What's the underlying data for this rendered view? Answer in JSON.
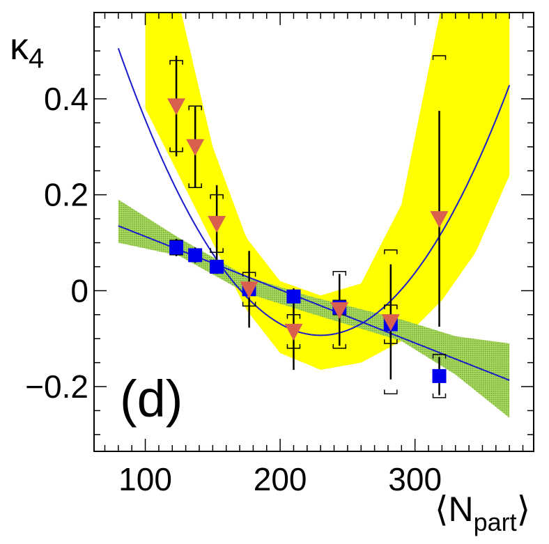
{
  "chart_data": {
    "type": "scatter",
    "panel_label": "(d)",
    "xlabel": {
      "main": "⟨N",
      "sub": "part",
      "close": "⟩"
    },
    "ylabel": {
      "main": "κ",
      "sub": "4"
    },
    "xlim": [
      62,
      388
    ],
    "ylim": [
      -0.335,
      0.58
    ],
    "x_ticks": [
      {
        "value": 100,
        "label": "100"
      },
      {
        "value": 200,
        "label": "200"
      },
      {
        "value": 300,
        "label": "300"
      }
    ],
    "y_ticks": [
      {
        "value": -0.2,
        "label": "−0.2"
      },
      {
        "value": 0,
        "label": "0"
      },
      {
        "value": 0.2,
        "label": "0.2"
      },
      {
        "value": 0.4,
        "label": "0.4"
      }
    ],
    "series": [
      {
        "name": "blue squares",
        "marker": "square",
        "color": "#0000ee",
        "x": [
          123,
          137,
          153,
          177,
          210,
          244,
          282,
          318
        ],
        "y": [
          0.09,
          0.074,
          0.05,
          0.003,
          -0.012,
          -0.035,
          -0.07,
          -0.178
        ],
        "stat_err": [
          0.018,
          0.016,
          0.015,
          0.016,
          0.017,
          0.02,
          0.024,
          0.04
        ],
        "sys_err": [
          0.015,
          0.012,
          0.013,
          0.013,
          0.012,
          0.015,
          0.04,
          0.045
        ]
      },
      {
        "name": "red triangles",
        "marker": "triangle-down",
        "color": "#d9604f",
        "x": [
          123,
          137,
          153,
          177,
          210,
          244,
          282,
          318
        ],
        "y": [
          0.385,
          0.3,
          0.14,
          0.003,
          -0.085,
          -0.04,
          -0.065,
          0.15
        ],
        "stat_err": [
          0.105,
          0.085,
          0.08,
          0.08,
          0.08,
          0.075,
          0.12,
          0.225
        ],
        "sys_err": [
          0.095,
          0.085,
          0.06,
          0.035,
          0.035,
          0.08,
          0.15,
          0.34
        ]
      }
    ],
    "fits": [
      {
        "name": "linear fit",
        "color": "#1a1acc",
        "band_color": "#8fcc3c",
        "form": "a + b*x",
        "a": 0.224,
        "b": -0.00111,
        "x_range": [
          80,
          370
        ],
        "band": [
          {
            "x": 80,
            "lo": 0.1,
            "hi": 0.19
          },
          {
            "x": 125,
            "lo": 0.073,
            "hi": 0.11
          },
          {
            "x": 175,
            "lo": -0.005,
            "hi": 0.03
          },
          {
            "x": 220,
            "lo": -0.045,
            "hi": -0.01
          },
          {
            "x": 290,
            "lo": -0.105,
            "hi": -0.06
          },
          {
            "x": 330,
            "lo": -0.175,
            "hi": -0.095
          },
          {
            "x": 370,
            "lo": -0.265,
            "hi": -0.11
          }
        ]
      },
      {
        "name": "parabolic fit",
        "color": "#1a1acc",
        "band_color": "#ffff00",
        "form": "c + d*(x - x0)^2",
        "c": -0.093,
        "d": 2.66e-05,
        "x0": 230,
        "x_range": [
          80,
          370
        ],
        "band": [
          {
            "x": 100,
            "lo": 0.38,
            "hi": 0.6
          },
          {
            "x": 125,
            "lo": 0.24,
            "hi": 0.6
          },
          {
            "x": 150,
            "lo": 0.1,
            "hi": 0.3
          },
          {
            "x": 175,
            "lo": -0.04,
            "hi": 0.11
          },
          {
            "x": 200,
            "lo": -0.13,
            "hi": 0.02
          },
          {
            "x": 230,
            "lo": -0.165,
            "hi": -0.01
          },
          {
            "x": 260,
            "lo": -0.15,
            "hi": 0.015
          },
          {
            "x": 290,
            "lo": -0.105,
            "hi": 0.18
          },
          {
            "x": 320,
            "lo": -0.02,
            "hi": 0.6
          },
          {
            "x": 345,
            "lo": 0.08,
            "hi": 0.6
          },
          {
            "x": 370,
            "lo": 0.24,
            "hi": 0.6
          }
        ]
      }
    ]
  }
}
